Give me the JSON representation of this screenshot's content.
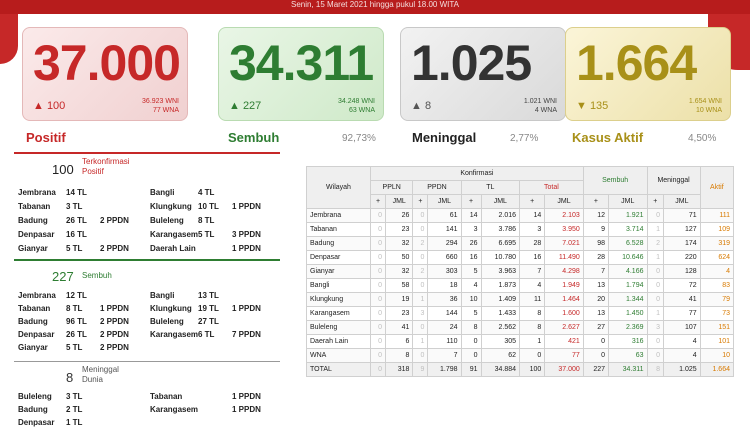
{
  "header": {
    "date_line": "Senin, 15 Maret 2021 hingga pukul 18.00 WITA"
  },
  "cards": [
    {
      "value": "37.000",
      "change": "▲ 100",
      "sub1": "36.923 WNI",
      "sub2": "77 WNA",
      "label": "Positif",
      "pct": ""
    },
    {
      "value": "34.311",
      "change": "▲ 227",
      "sub1": "34.248 WNI",
      "sub2": "63 WNA",
      "label": "Sembuh",
      "pct": "92,73%"
    },
    {
      "value": "1.025",
      "change": "▲ 8",
      "sub1": "1.021 WNI",
      "sub2": "4 WNA",
      "label": "Meninggal",
      "pct": "2,77%"
    },
    {
      "value": "1.664",
      "change": "▼ 135",
      "sub1": "1.654 WNI",
      "sub2": "10 WNA",
      "label": "Kasus Aktif",
      "pct": "4,50%"
    }
  ],
  "sections": [
    {
      "num": "100",
      "title1": "Terkonfirmasi",
      "title2": "Positif",
      "left": [
        [
          "Jembrana",
          "14 TL",
          ""
        ],
        [
          "Tabanan",
          "3 TL",
          ""
        ],
        [
          "Badung",
          "26 TL",
          "2 PPDN"
        ],
        [
          "Denpasar",
          "16 TL",
          ""
        ],
        [
          "Gianyar",
          "5 TL",
          "2 PPDN"
        ]
      ],
      "right": [
        [
          "Bangli",
          "4 TL",
          ""
        ],
        [
          "Klungkung",
          "10 TL",
          "1 PPDN"
        ],
        [
          "Buleleng",
          "8 TL",
          ""
        ],
        [
          "Karangasem",
          "5 TL",
          "3 PPDN"
        ],
        [
          "Daerah Lain",
          "",
          "1 PPDN"
        ]
      ]
    },
    {
      "num": "227",
      "title1": "Sembuh",
      "title2": "",
      "left": [
        [
          "Jembrana",
          "12 TL",
          ""
        ],
        [
          "Tabanan",
          "8 TL",
          "1 PPDN"
        ],
        [
          "Badung",
          "96 TL",
          "2 PPDN"
        ],
        [
          "Denpasar",
          "26 TL",
          "2 PPDN"
        ],
        [
          "Gianyar",
          "5 TL",
          "2 PPDN"
        ]
      ],
      "right": [
        [
          "Bangli",
          "13 TL",
          ""
        ],
        [
          "Klungkung",
          "19 TL",
          "1 PPDN"
        ],
        [
          "Buleleng",
          "27 TL",
          ""
        ],
        [
          "Karangasem",
          "6 TL",
          "7 PPDN"
        ],
        [
          "",
          "",
          ""
        ]
      ]
    },
    {
      "num": "8",
      "title1": "Meninggal",
      "title2": "Dunia",
      "left": [
        [
          "Buleleng",
          "3 TL",
          ""
        ],
        [
          "Badung",
          "2 TL",
          ""
        ],
        [
          "Denpasar",
          "1 TL",
          ""
        ]
      ],
      "right": [
        [
          "Tabanan",
          "",
          "1 PPDN"
        ],
        [
          "Karangasem",
          "",
          "1 PPDN"
        ],
        [
          "",
          "",
          ""
        ]
      ]
    }
  ],
  "table": {
    "h_wilayah": "Wilayah",
    "h_konf": "Konfirmasi",
    "h_ppln": "PPLN",
    "h_ppdn": "PPDN",
    "h_tl": "TL",
    "h_total": "Total",
    "h_sembuh": "Sembuh",
    "h_meninggal": "Meninggal",
    "h_aktif": "Aktif",
    "h_plus": "+",
    "h_jml": "JML",
    "rows": [
      [
        "Jembrana",
        "0",
        "26",
        "0",
        "61",
        "14",
        "2.016",
        "14",
        "2.103",
        "12",
        "1.921",
        "0",
        "71",
        "111"
      ],
      [
        "Tabanan",
        "0",
        "23",
        "0",
        "141",
        "3",
        "3.786",
        "3",
        "3.950",
        "9",
        "3.714",
        "1",
        "127",
        "109"
      ],
      [
        "Badung",
        "0",
        "32",
        "2",
        "294",
        "26",
        "6.695",
        "28",
        "7.021",
        "98",
        "6.528",
        "2",
        "174",
        "319"
      ],
      [
        "Denpasar",
        "0",
        "50",
        "0",
        "660",
        "16",
        "10.780",
        "16",
        "11.490",
        "28",
        "10.646",
        "1",
        "220",
        "624"
      ],
      [
        "Gianyar",
        "0",
        "32",
        "2",
        "303",
        "5",
        "3.963",
        "7",
        "4.298",
        "7",
        "4.166",
        "0",
        "128",
        "4"
      ],
      [
        "Bangli",
        "0",
        "58",
        "0",
        "18",
        "4",
        "1.873",
        "4",
        "1.949",
        "13",
        "1.794",
        "0",
        "72",
        "83"
      ],
      [
        "Klungkung",
        "0",
        "19",
        "1",
        "36",
        "10",
        "1.409",
        "11",
        "1.464",
        "20",
        "1.344",
        "0",
        "41",
        "79"
      ],
      [
        "Karangasem",
        "0",
        "23",
        "3",
        "144",
        "5",
        "1.433",
        "8",
        "1.600",
        "13",
        "1.450",
        "1",
        "77",
        "73"
      ],
      [
        "Buleleng",
        "0",
        "41",
        "0",
        "24",
        "8",
        "2.562",
        "8",
        "2.627",
        "27",
        "2.369",
        "3",
        "107",
        "151"
      ],
      [
        "Daerah Lain",
        "0",
        "6",
        "1",
        "110",
        "0",
        "305",
        "1",
        "421",
        "0",
        "316",
        "0",
        "4",
        "101"
      ],
      [
        "WNA",
        "0",
        "8",
        "0",
        "7",
        "0",
        "62",
        "0",
        "77",
        "0",
        "63",
        "0",
        "4",
        "10"
      ]
    ],
    "total": [
      "TOTAL",
      "0",
      "318",
      "9",
      "1.798",
      "91",
      "34.884",
      "100",
      "37.000",
      "227",
      "34.311",
      "8",
      "1.025",
      "1.664"
    ]
  },
  "colors": {
    "red": "#c62828",
    "green": "#2e7d32",
    "gold": "#a89018"
  }
}
